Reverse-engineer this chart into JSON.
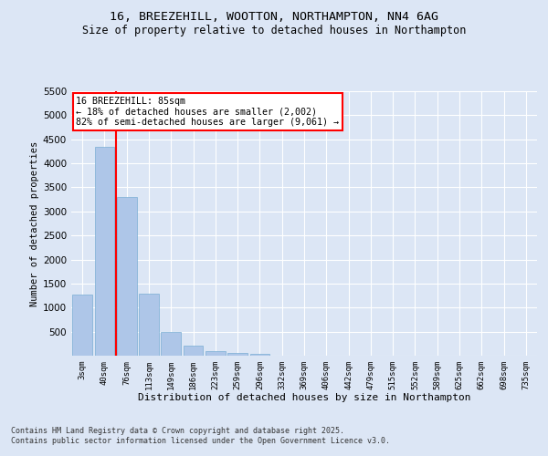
{
  "title": "16, BREEZEHILL, WOOTTON, NORTHAMPTON, NN4 6AG",
  "subtitle": "Size of property relative to detached houses in Northampton",
  "xlabel": "Distribution of detached houses by size in Northampton",
  "ylabel": "Number of detached properties",
  "bar_color": "#aec6e8",
  "bar_edge_color": "#7aaed4",
  "background_color": "#dce6f5",
  "grid_color": "#ffffff",
  "fig_background": "#dce6f5",
  "categories": [
    "3sqm",
    "40sqm",
    "76sqm",
    "113sqm",
    "149sqm",
    "186sqm",
    "223sqm",
    "259sqm",
    "296sqm",
    "332sqm",
    "369sqm",
    "406sqm",
    "442sqm",
    "479sqm",
    "515sqm",
    "552sqm",
    "589sqm",
    "625sqm",
    "662sqm",
    "698sqm",
    "735sqm"
  ],
  "values": [
    1270,
    4350,
    3300,
    1290,
    500,
    215,
    95,
    60,
    40,
    0,
    0,
    0,
    0,
    0,
    0,
    0,
    0,
    0,
    0,
    0,
    0
  ],
  "ylim": [
    0,
    5500
  ],
  "yticks": [
    0,
    500,
    1000,
    1500,
    2000,
    2500,
    3000,
    3500,
    4000,
    4500,
    5000,
    5500
  ],
  "red_line_x": 1.5,
  "annotation_title": "16 BREEZEHILL: 85sqm",
  "annotation_line1": "← 18% of detached houses are smaller (2,002)",
  "annotation_line2": "82% of semi-detached houses are larger (9,061) →",
  "footer_line1": "Contains HM Land Registry data © Crown copyright and database right 2025.",
  "footer_line2": "Contains public sector information licensed under the Open Government Licence v3.0."
}
